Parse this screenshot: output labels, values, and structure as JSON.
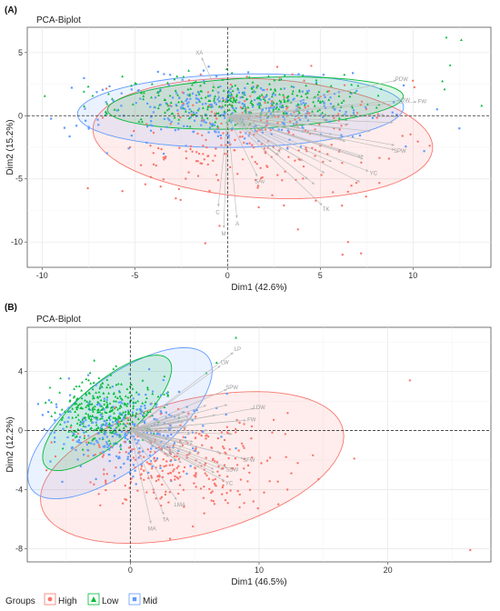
{
  "legend": {
    "title": "Groups",
    "items": [
      {
        "name": "High",
        "color": "#F8766D",
        "symbol": "circle"
      },
      {
        "name": "Low",
        "color": "#00BA38",
        "symbol": "triangle"
      },
      {
        "name": "Mid",
        "color": "#619CFF",
        "symbol": "square"
      }
    ]
  },
  "chart_data": [
    {
      "type": "scatter",
      "panel_label": "(A)",
      "title": "PCA-Biplot",
      "xlabel": "Dim1 (42.6%)",
      "ylabel": "Dim2 (15.2%)",
      "xlim": [
        -10.8,
        14.2
      ],
      "ylim": [
        -12.0,
        7.0
      ],
      "xticks": [
        -10,
        -5,
        0,
        5,
        10
      ],
      "yticks": [
        -10,
        -5,
        0,
        5
      ],
      "grid": true,
      "ellipses": [
        {
          "group": "High",
          "cx": 1.9,
          "cy": -1.8,
          "rx": 9.2,
          "ry": 4.7,
          "angle": -6
        },
        {
          "group": "Mid",
          "cx": 0.7,
          "cy": 0.4,
          "rx": 8.8,
          "ry": 2.9,
          "angle": 2
        },
        {
          "group": "Low",
          "cx": 1.5,
          "cy": 1.0,
          "rx": 8.0,
          "ry": 2.0,
          "angle": 4
        }
      ],
      "variables": [
        {
          "label": "XA",
          "x": -1.4,
          "y": 4.6
        },
        {
          "label": "PDW",
          "x": 9.1,
          "y": 2.8
        },
        {
          "label": "DW",
          "x": 9.3,
          "y": 1.2
        },
        {
          "label": "FW",
          "x": 10.2,
          "y": 1.1
        },
        {
          "label": "SPW",
          "x": 9.0,
          "y": -2.7
        },
        {
          "label": "YC",
          "x": 7.6,
          "y": -4.4
        },
        {
          "label": "SAv",
          "x": 1.6,
          "y": -4.8
        },
        {
          "label": "C",
          "x": -0.5,
          "y": -7.2
        },
        {
          "label": "A",
          "x": 0.5,
          "y": -8.1
        },
        {
          "label": "M",
          "x": -0.2,
          "y": -8.9
        },
        {
          "label": "TK",
          "x": 5.1,
          "y": -7.1
        }
      ],
      "groups": [
        {
          "name": "High",
          "n": 260,
          "cx": 1.9,
          "cy": -1.8,
          "sx": 3.5,
          "sy": 2.3,
          "seed": 11,
          "outliers": [
            [
              6.2,
              -11.0
            ],
            [
              7.2,
              -10.9
            ],
            [
              6.5,
              -10.0
            ],
            [
              3.8,
              -9.0
            ],
            [
              -1.2,
              -10.1
            ]
          ]
        },
        {
          "name": "Mid",
          "n": 320,
          "cx": 0.4,
          "cy": 0.3,
          "sx": 3.6,
          "sy": 1.3,
          "seed": 23,
          "outliers": [
            [
              9.5,
              2.4
            ],
            [
              11.3,
              0.5
            ],
            [
              10.6,
              -2.8
            ],
            [
              12.5,
              -1.0
            ]
          ]
        },
        {
          "name": "Low",
          "n": 320,
          "cx": 1.0,
          "cy": 1.2,
          "sx": 3.5,
          "sy": 0.9,
          "seed": 37,
          "outliers": [
            [
              11.8,
              6.2
            ],
            [
              12.6,
              6.0
            ],
            [
              12.0,
              4.0
            ],
            [
              11.7,
              2.1
            ],
            [
              13.7,
              0.8
            ]
          ]
        }
      ]
    },
    {
      "type": "scatter",
      "panel_label": "(B)",
      "title": "PCA-Biplot",
      "xlabel": "Dim1 (46.5%)",
      "ylabel": "Dim2 (12.2%)",
      "xlim": [
        -8.0,
        28.0
      ],
      "ylim": [
        -8.9,
        7.0
      ],
      "xticks": [
        0,
        10,
        20
      ],
      "yticks": [
        -8,
        -4,
        0,
        4
      ],
      "grid": true,
      "ellipses": [
        {
          "group": "High",
          "cx": 4.8,
          "cy": -2.5,
          "rx": 12.0,
          "ry": 4.6,
          "angle": 12
        },
        {
          "group": "Mid",
          "cx": -0.8,
          "cy": 0.5,
          "rx": 8.2,
          "ry": 3.2,
          "angle": 32
        },
        {
          "group": "Low",
          "cx": -1.8,
          "cy": 1.2,
          "rx": 6.0,
          "ry": 2.1,
          "angle": 36
        }
      ],
      "variables": [
        {
          "label": "LP",
          "x": 8.0,
          "y": 5.3
        },
        {
          "label": "LW",
          "x": 7.0,
          "y": 4.4
        },
        {
          "label": "SPW",
          "x": 7.5,
          "y": 2.8
        },
        {
          "label": "LDW",
          "x": 9.6,
          "y": 1.5
        },
        {
          "label": "FW",
          "x": 9.0,
          "y": 0.7
        },
        {
          "label": "SFW",
          "x": 8.8,
          "y": -1.9
        },
        {
          "label": "SDW",
          "x": 7.5,
          "y": -2.5
        },
        {
          "label": "YC",
          "x": 7.3,
          "y": -3.4
        },
        {
          "label": "LMA",
          "x": 3.6,
          "y": -4.7
        },
        {
          "label": "TA",
          "x": 2.6,
          "y": -5.7
        },
        {
          "label": "MA",
          "x": 1.6,
          "y": -6.3
        }
      ],
      "groups": [
        {
          "name": "High",
          "n": 300,
          "cx": 3.8,
          "cy": -2.2,
          "sx": 3.9,
          "sy": 1.7,
          "seed": 51,
          "outliers": [
            [
              21.7,
              3.4
            ],
            [
              26.4,
              -8.1
            ],
            [
              12.2,
              -4.0
            ],
            [
              11.5,
              -5.0
            ],
            [
              13.0,
              -2.2
            ]
          ]
        },
        {
          "name": "Mid",
          "n": 300,
          "cx": -0.7,
          "cy": 0.2,
          "sx": 2.7,
          "sy": 1.4,
          "seed": 63,
          "outliers": [
            [
              7.5,
              2.5
            ],
            [
              8.2,
              -1.2
            ]
          ]
        },
        {
          "name": "Low",
          "n": 320,
          "cx": -1.9,
          "cy": 1.3,
          "sx": 2.0,
          "sy": 1.1,
          "seed": 77,
          "outliers": [
            [
              8.2,
              6.3
            ],
            [
              6.7,
              4.6
            ],
            [
              5.9,
              3.9
            ]
          ]
        }
      ]
    }
  ]
}
